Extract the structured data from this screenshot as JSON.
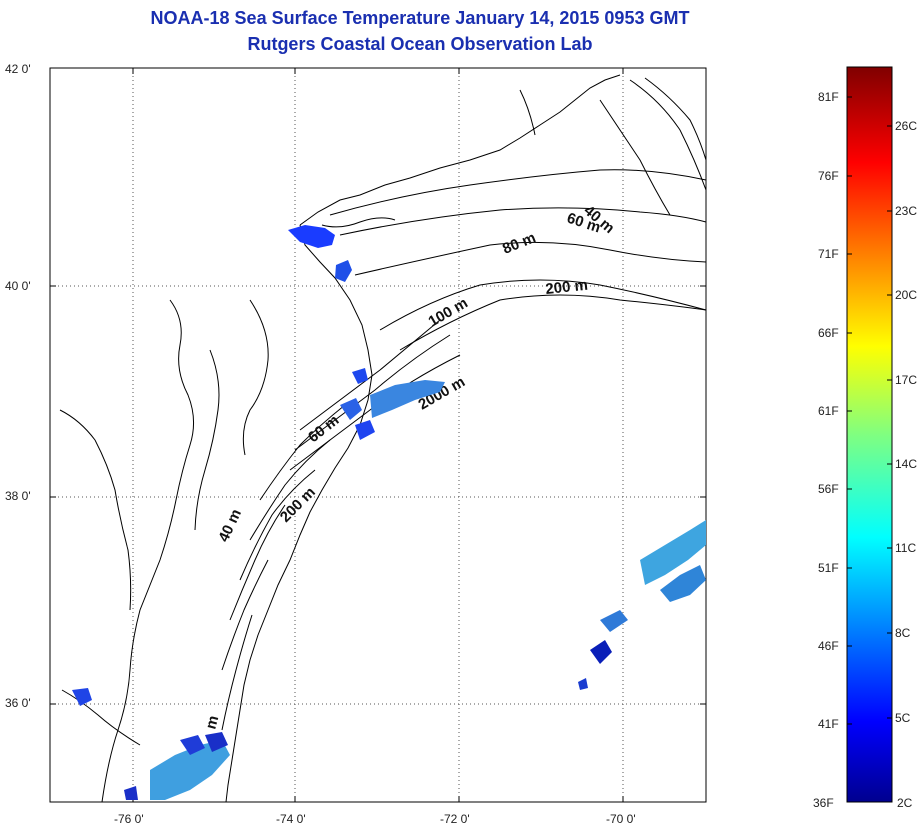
{
  "title": {
    "line1": "NOAA-18 Sea Surface Temperature January 14, 2015 0953 GMT",
    "line2": "Rutgers Coastal Ocean Observation Lab"
  },
  "map": {
    "lat_labels": [
      "42 0'",
      "40 0'",
      "38 0'",
      "36 0'"
    ],
    "lon_labels": [
      "-76 0'",
      "-74 0'",
      "-72 0'",
      "-70 0'"
    ],
    "contour_labels": [
      "40 m",
      "60 m",
      "80 m",
      "200 m",
      "100 m",
      "2000 m",
      "60 m",
      "200 m",
      "40 m",
      "m"
    ],
    "grid": "dotted"
  },
  "colorbar": {
    "fahrenheit": [
      "81F",
      "76F",
      "71F",
      "66F",
      "61F",
      "56F",
      "51F",
      "46F",
      "41F",
      "36F"
    ],
    "celsius": [
      "26C",
      "23C",
      "20C",
      "17C",
      "14C",
      "11C",
      "8C",
      "5C",
      "2C"
    ],
    "colormap": "jet",
    "range_c": [
      2,
      28
    ]
  },
  "colors": {
    "title": "#1a2fb0",
    "coast": "#000000"
  }
}
